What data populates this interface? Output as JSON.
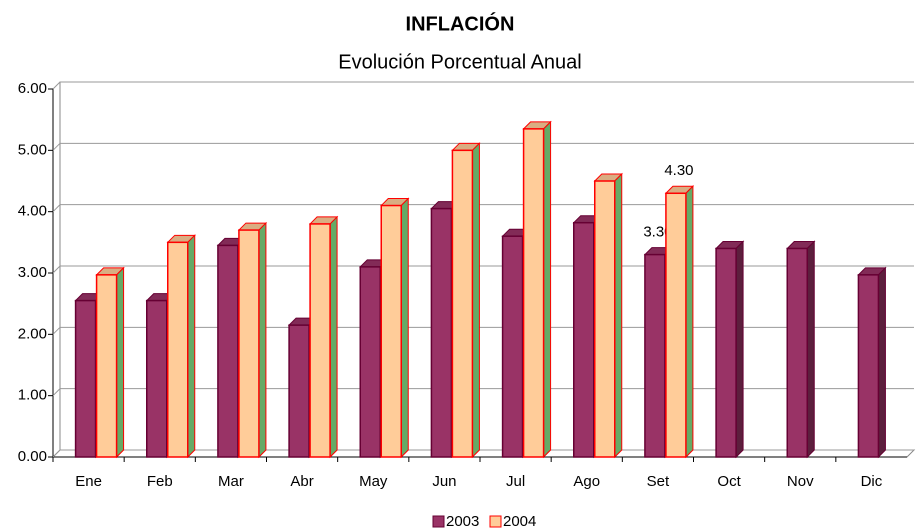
{
  "chart_data": {
    "type": "bar3d",
    "title": "INFLACIÓN",
    "subtitle": "Evolución Porcentual Anual",
    "categories": [
      "Ene",
      "Feb",
      "Mar",
      "Abr",
      "May",
      "Jun",
      "Jul",
      "Ago",
      "Set",
      "Oct",
      "Nov",
      "Dic"
    ],
    "series": [
      {
        "name": "2003",
        "color": "#993366",
        "edge": "#660033",
        "values": [
          2.55,
          2.55,
          3.45,
          2.15,
          3.1,
          4.05,
          3.6,
          3.82,
          3.3,
          3.4,
          3.4,
          2.97
        ],
        "value_labels": [
          null,
          null,
          null,
          null,
          null,
          null,
          null,
          null,
          "3.30",
          null,
          null,
          null
        ]
      },
      {
        "name": "2004",
        "color": "#FFCC99",
        "edge": "#FF0000",
        "values": [
          2.97,
          3.5,
          3.7,
          3.8,
          4.1,
          5.0,
          5.35,
          4.5,
          4.3,
          null,
          null,
          null
        ],
        "value_labels": [
          null,
          null,
          null,
          null,
          null,
          null,
          null,
          null,
          "4.30",
          null,
          null,
          null
        ]
      }
    ],
    "ylim": [
      0,
      6
    ],
    "yticks": [
      {
        "value": 0,
        "label": "0.00"
      },
      {
        "value": 1,
        "label": "1.00"
      },
      {
        "value": 2,
        "label": "2.00"
      },
      {
        "value": 3,
        "label": "3.00"
      },
      {
        "value": 4,
        "label": "4.00"
      },
      {
        "value": 5,
        "label": "5.00"
      },
      {
        "value": 6,
        "label": "6.00"
      }
    ],
    "grid": true,
    "legend": "bottom"
  }
}
